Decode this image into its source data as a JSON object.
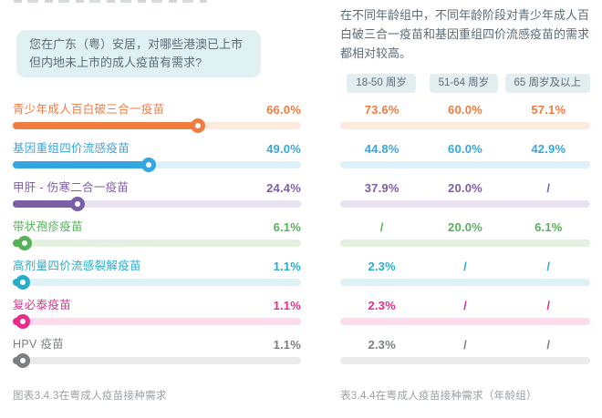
{
  "left": {
    "question": "您在广东（粤）安居，对哪些港澳已上市但内地未上市的成人疫苗有需求?",
    "caption": "图表3.4.3在粤成人疫苗接种需求"
  },
  "right": {
    "intro": "在不同年龄组中，不同年龄阶段对青少年成人百白破三合一疫苗和基因重组四价流感疫苗的需求都相对较高。",
    "caption": "表3.4.4在粤成人疫苗接种需求（年龄组）"
  },
  "colors": {
    "bubble_bg": "#e0f1f4",
    "pill_bg": "#e3eef1",
    "body_text": "#5c6b76",
    "caption_text": "#9a9fa3"
  },
  "chart_data": [
    {
      "type": "bar",
      "orientation": "horizontal",
      "title": "图表3.4.3在粤成人疫苗接种需求",
      "categories": [
        "青少年成人百白破三合一疫苗",
        "基因重组四价流感疫苗",
        "甲肝 - 伤寒二合一疫苗",
        "带状孢疹疫苗",
        "高剂量四价流感裂解疫苗",
        "复必泰疫苗",
        "HPV 疫苗"
      ],
      "values": [
        66.0,
        49.0,
        24.4,
        6.1,
        1.1,
        1.1,
        1.1
      ],
      "value_labels": [
        "66.0%",
        "49.0%",
        "24.4%",
        "6.1%",
        "1.1%",
        "1.1%",
        "1.1%"
      ],
      "bar_colors": [
        "#ef7c41",
        "#35a7e0",
        "#7d5fa6",
        "#56b158",
        "#27adc8",
        "#ea2a8d",
        "#7b7f82"
      ],
      "track_colors": [
        "#fdeadf",
        "#def0fa",
        "#e9e3ef",
        "#e4f1e1",
        "#def1f4",
        "#fcdcec",
        "#ebebeb"
      ],
      "xlim": [
        0,
        100
      ],
      "grid": false,
      "legend": false
    },
    {
      "type": "table",
      "title": "表3.4.4在粤成人疫苗接种需求（年龄组）",
      "columns": [
        "18-50 周岁",
        "51-64 周岁",
        "65 周岁及以上"
      ],
      "row_labels": [
        "青少年成人百白破三合一疫苗",
        "基因重组四价流感疫苗",
        "甲肝 - 伤寒二合一疫苗",
        "带状孢疹疫苗",
        "高剂量四价流感裂解疫苗",
        "复必泰疫苗",
        "HPV 疫苗"
      ],
      "rows": [
        [
          "73.6%",
          "60.0%",
          "57.1%"
        ],
        [
          "44.8%",
          "60.0%",
          "42.9%"
        ],
        [
          "37.9%",
          "20.0%",
          "/"
        ],
        [
          "/",
          "20.0%",
          "6.1%"
        ],
        [
          "2.3%",
          "/",
          "/"
        ],
        [
          "2.3%",
          "/",
          "/"
        ],
        [
          "2.3%",
          "/",
          "/"
        ]
      ],
      "row_colors": [
        "#ef7c41",
        "#35a7e0",
        "#7d5fa6",
        "#56b158",
        "#27adc8",
        "#ea2a8d",
        "#7b7f82"
      ],
      "strip_colors": [
        "#fdeadf",
        "#def0fa",
        "#e9e3ef",
        "#e4f1e1",
        "#def1f4",
        "#fcdcec",
        "#ebebeb"
      ]
    }
  ]
}
